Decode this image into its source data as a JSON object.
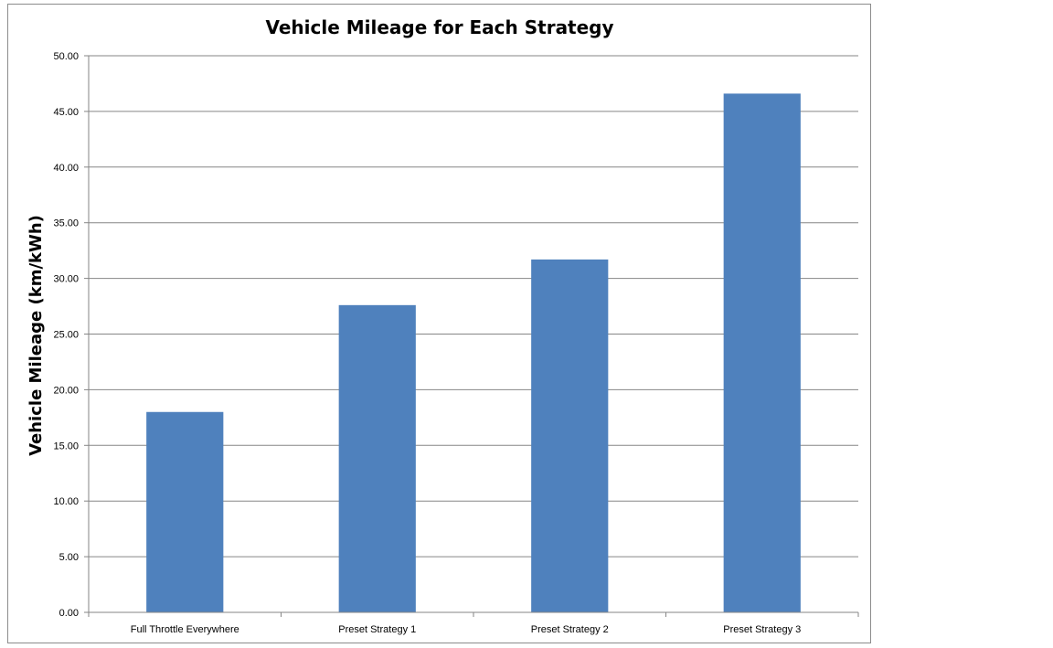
{
  "chart_data": {
    "type": "bar",
    "title": "Vehicle Mileage for Each Strategy",
    "xlabel": "",
    "ylabel": "Vehicle Mileage (km/kWh)",
    "categories": [
      "Full Throttle Everywhere",
      "Preset Strategy 1",
      "Preset Strategy 2",
      "Preset Strategy 3"
    ],
    "values": [
      18.0,
      27.6,
      31.7,
      46.6
    ],
    "ylim": [
      0,
      50
    ],
    "yticks": [
      "0.00",
      "5.00",
      "10.00",
      "15.00",
      "20.00",
      "25.00",
      "30.00",
      "35.00",
      "40.00",
      "45.00",
      "50.00"
    ],
    "grid": true,
    "legend": "none",
    "bar_color": "#4f81bd",
    "grid_color": "#868686"
  }
}
